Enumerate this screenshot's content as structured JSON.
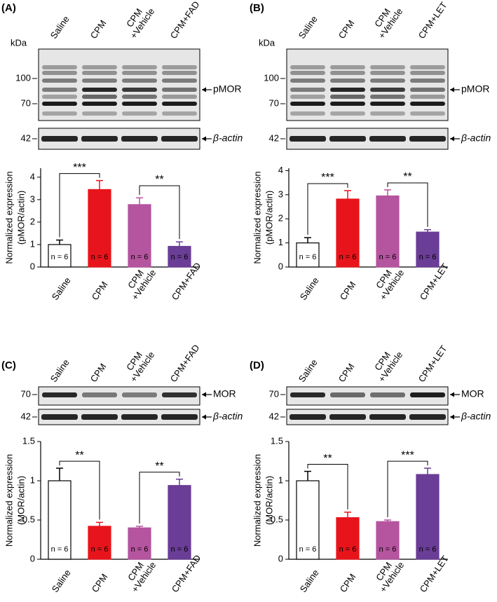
{
  "chart_data": [
    {
      "type": "bar",
      "panel": "(A)",
      "blot": {
        "lanes": [
          "Saline",
          "CPM",
          "CPM\n+Vehicle",
          "CPM+FAD"
        ],
        "unit": "kDa",
        "markers": [
          100,
          70
        ],
        "loading_marker": 42,
        "target": "pMOR",
        "loading": "β-actin"
      },
      "ylabel": [
        "Normalized expression",
        "(pMOR/actin)"
      ],
      "categories": [
        "Saline",
        "CPM",
        "CPM\n+Vehicle",
        "CPM+FAD"
      ],
      "values": [
        1.0,
        3.45,
        2.78,
        0.92
      ],
      "errors": [
        0.2,
        0.4,
        0.3,
        0.2
      ],
      "n_labels": [
        "n = 6",
        "n = 6",
        "n = 6",
        "n = 6"
      ],
      "colors": [
        "#ffffff",
        "#e8141b",
        "#b5549f",
        "#6a3d96"
      ],
      "ylim": [
        0,
        4.4
      ],
      "yticks": [
        0,
        1,
        2,
        3,
        4
      ],
      "significance": [
        "***",
        "**"
      ]
    },
    {
      "type": "bar",
      "panel": "(B)",
      "blot": {
        "lanes": [
          "Saline",
          "CPM",
          "CPM\n+Vehicle",
          "CPM+LET"
        ],
        "unit": "kDa",
        "markers": [
          100,
          70
        ],
        "loading_marker": 42,
        "target": "pMOR",
        "loading": "β-actin"
      },
      "ylabel": [
        "Normalized expression",
        "(pMOR/actin)"
      ],
      "categories": [
        "Saline",
        "CPM",
        "CPM\n+Vehicle",
        "CPM+LET"
      ],
      "values": [
        1.0,
        2.82,
        2.95,
        1.45
      ],
      "errors": [
        0.22,
        0.35,
        0.25,
        0.1
      ],
      "n_labels": [
        "n = 6",
        "n = 6",
        "n = 6",
        "n = 6"
      ],
      "colors": [
        "#ffffff",
        "#e8141b",
        "#b5549f",
        "#6a3d96"
      ],
      "ylim": [
        0,
        4.1
      ],
      "yticks": [
        0,
        1,
        2,
        3,
        4
      ],
      "significance": [
        "***",
        "**"
      ]
    },
    {
      "type": "bar",
      "panel": "(C)",
      "blot": {
        "lanes": [
          "Saline",
          "CPM",
          "CPM\n+Vehicle",
          "CPM+FAD"
        ],
        "unit": null,
        "markers": [
          70
        ],
        "loading_marker": 42,
        "target": "MOR",
        "loading": "β-actin"
      },
      "ylabel": [
        "Normalized expression",
        "(MOR/actin)"
      ],
      "categories": [
        "Saline",
        "CPM",
        "CPM\n+Vehicle",
        "CPM+FAD"
      ],
      "values": [
        1.0,
        0.42,
        0.4,
        0.94
      ],
      "errors": [
        0.16,
        0.05,
        0.02,
        0.08
      ],
      "n_labels": [
        "n = 6",
        "n = 6",
        "n = 6",
        "n = 6"
      ],
      "colors": [
        "#ffffff",
        "#e8141b",
        "#b5549f",
        "#6a3d96"
      ],
      "ylim": [
        0,
        1.5
      ],
      "yticks": [
        0,
        0.5,
        1,
        1.5
      ],
      "significance": [
        "**",
        "**"
      ]
    },
    {
      "type": "bar",
      "panel": "(D)",
      "blot": {
        "lanes": [
          "Saline",
          "CPM",
          "CPM\n+Vehicle",
          "CPM+LET"
        ],
        "unit": null,
        "markers": [
          70
        ],
        "loading_marker": 42,
        "target": "MOR",
        "loading": "β-actin"
      },
      "ylabel": [
        "Normalized expression",
        "(MOR/actin)"
      ],
      "categories": [
        "Saline",
        "CPM",
        "CPM\n+Vehicle",
        "CPM+LET"
      ],
      "values": [
        1.0,
        0.53,
        0.48,
        1.08
      ],
      "errors": [
        0.12,
        0.07,
        0.02,
        0.08
      ],
      "n_labels": [
        "n = 6",
        "n = 6",
        "n = 6",
        "n = 6"
      ],
      "colors": [
        "#ffffff",
        "#e8141b",
        "#b5549f",
        "#6a3d96"
      ],
      "ylim": [
        0,
        1.5
      ],
      "yticks": [
        0,
        0.5,
        1,
        1.5
      ],
      "significance": [
        "**",
        "***"
      ]
    }
  ]
}
